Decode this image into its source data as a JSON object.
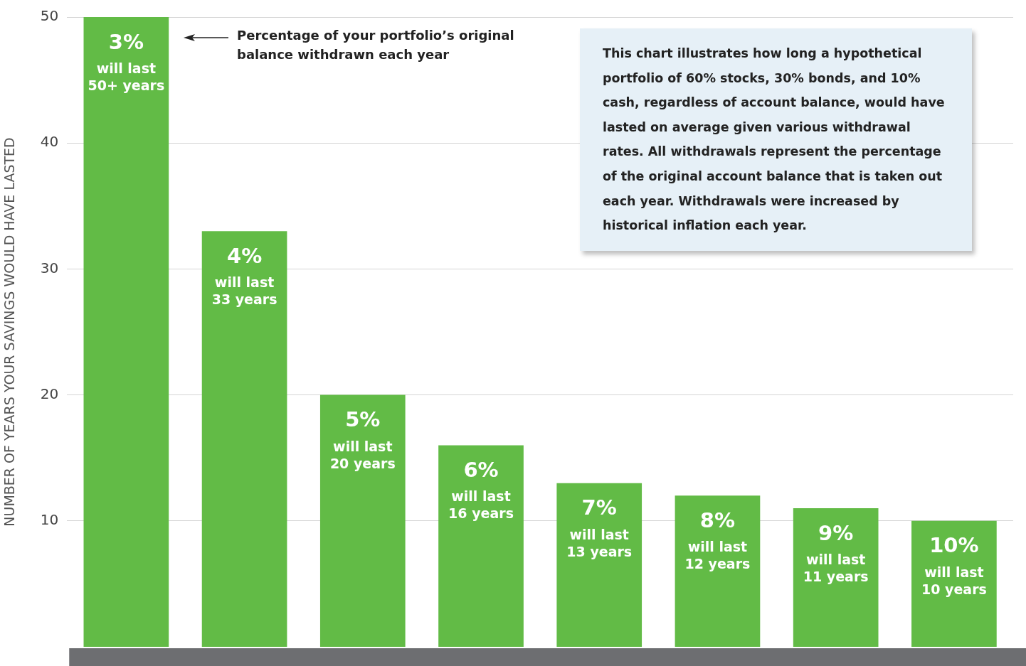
{
  "chart_data": {
    "type": "bar",
    "ylabel": "NUMBER OF YEARS YOUR SAVINGS WOULD HAVE LASTED",
    "categories": [
      "3%",
      "4%",
      "5%",
      "6%",
      "7%",
      "8%",
      "9%",
      "10%"
    ],
    "values": [
      50,
      33,
      20,
      16,
      13,
      12,
      11,
      10
    ],
    "value_labels": [
      "will last\n50+ years",
      "will last\n33 years",
      "will last\n20 years",
      "will last\n16 years",
      "will last\n13 years",
      "will last\n12 years",
      "will last\n11 years",
      "will last\n10 years"
    ],
    "color": "#62bb46",
    "ylim": [
      0,
      50
    ],
    "yticks": [
      10,
      20,
      30,
      40,
      50
    ],
    "grid": "y",
    "legend": false,
    "annotations": [
      "Percentage of your portfolio’s original balance withdrawn each year",
      "This chart illustrates how long a hypothetical portfolio of 60% stocks, 30% bonds, and 10% cash, regardless of account balance, would have lasted on average given various withdrawal rates. All withdrawals represent the percentage of the original account balance that is taken out each year. Withdrawals were increased by historical inflation each year."
    ]
  }
}
